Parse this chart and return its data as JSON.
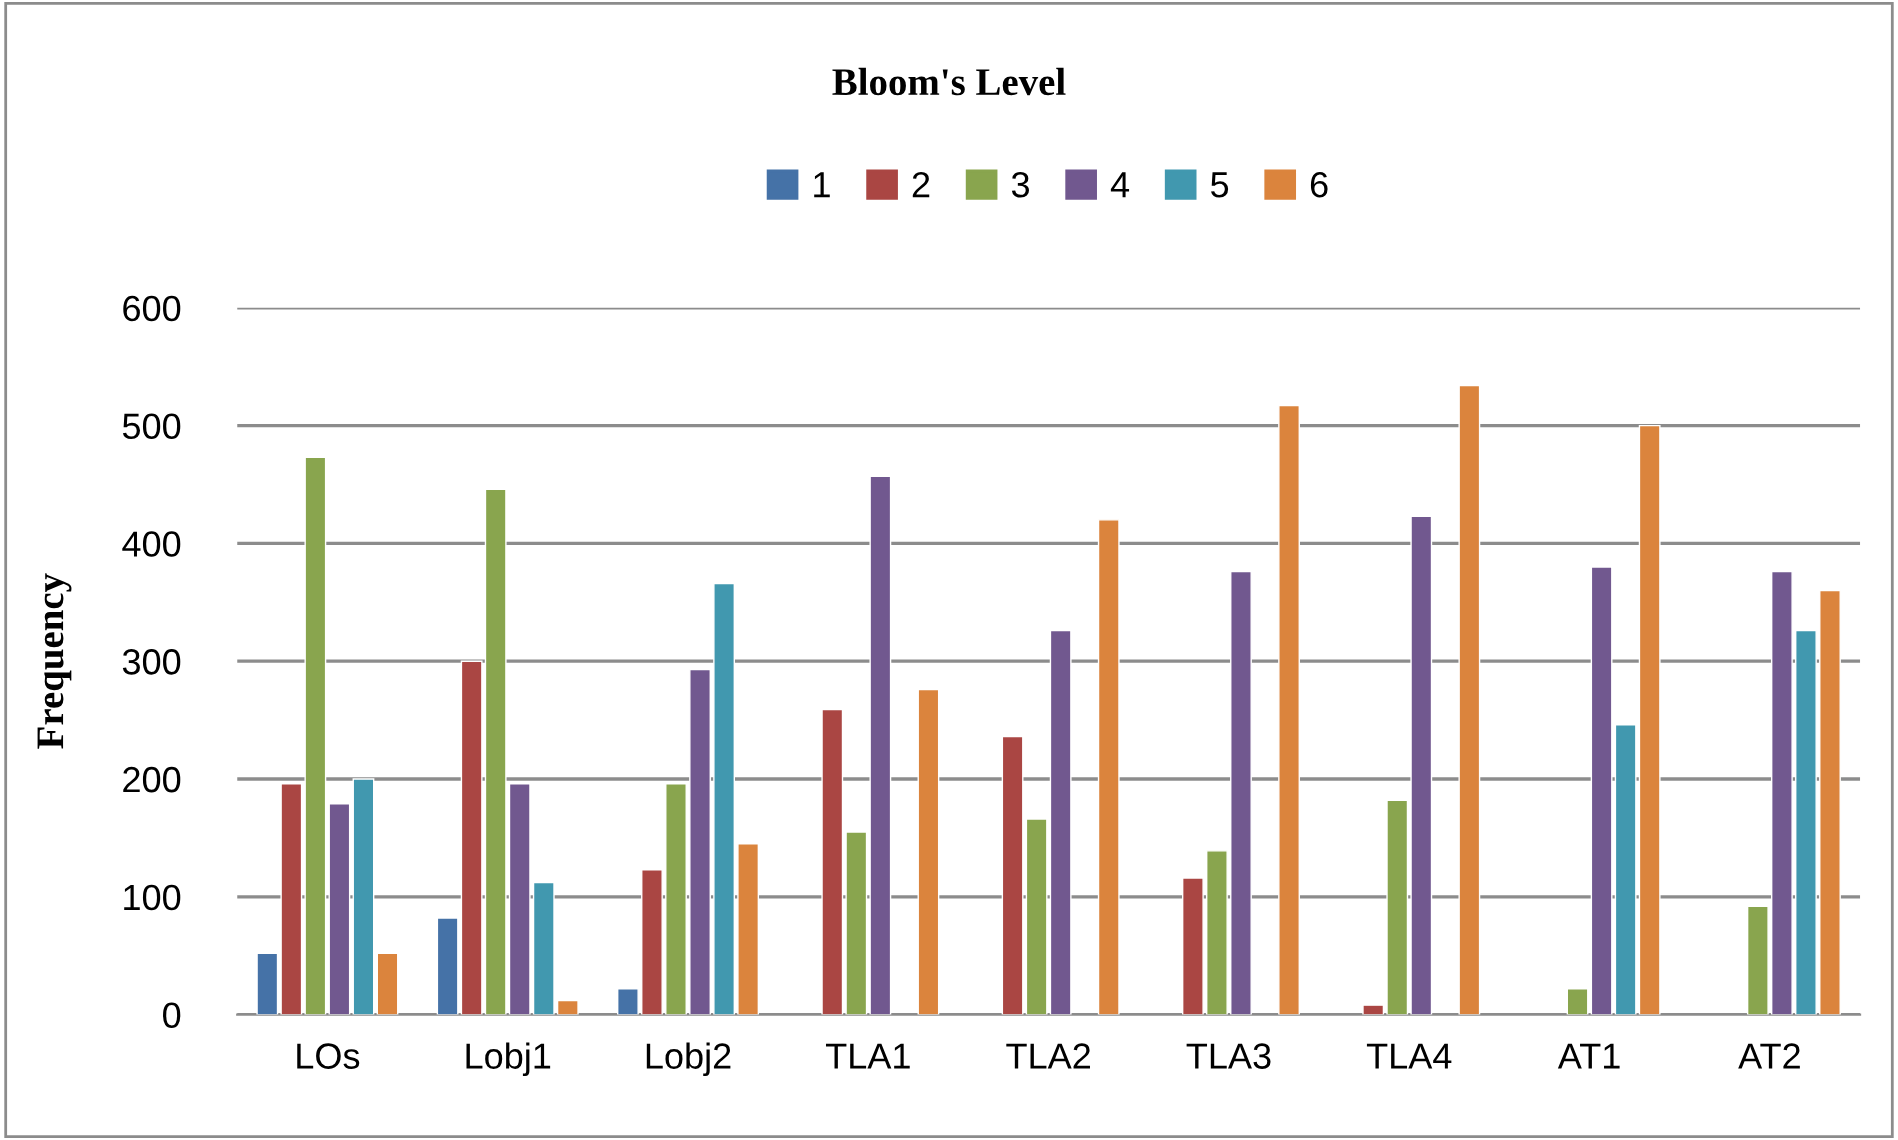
{
  "chart_data": {
    "type": "bar",
    "title": "Bloom's Level",
    "ylabel": "Frequency",
    "categories": [
      "LOs",
      "Lobj1",
      "Lobj2",
      "TLA1",
      "TLA2",
      "TLA3",
      "TLA4",
      "AT1",
      "AT2"
    ],
    "series": [
      {
        "name": "1",
        "color": "#4572a7",
        "values": [
          52,
          82,
          22,
          null,
          null,
          null,
          null,
          null,
          null
        ]
      },
      {
        "name": "2",
        "color": "#aa4643",
        "values": [
          196,
          300,
          123,
          259,
          236,
          116,
          8,
          null,
          null
        ]
      },
      {
        "name": "3",
        "color": "#89a54e",
        "values": [
          473,
          446,
          196,
          155,
          166,
          139,
          182,
          22,
          92
        ]
      },
      {
        "name": "4",
        "color": "#71588f",
        "values": [
          179,
          196,
          293,
          457,
          326,
          376,
          423,
          380,
          376
        ]
      },
      {
        "name": "5",
        "color": "#4198af",
        "values": [
          200,
          112,
          366,
          null,
          null,
          null,
          null,
          246,
          326
        ]
      },
      {
        "name": "6",
        "color": "#db843d",
        "values": [
          52,
          12,
          145,
          276,
          420,
          517,
          534,
          500,
          360
        ]
      }
    ],
    "ylim": [
      0,
      600
    ],
    "yticks": [
      0,
      100,
      200,
      300,
      400,
      500,
      600
    ],
    "grid": "y",
    "legend": "top"
  }
}
